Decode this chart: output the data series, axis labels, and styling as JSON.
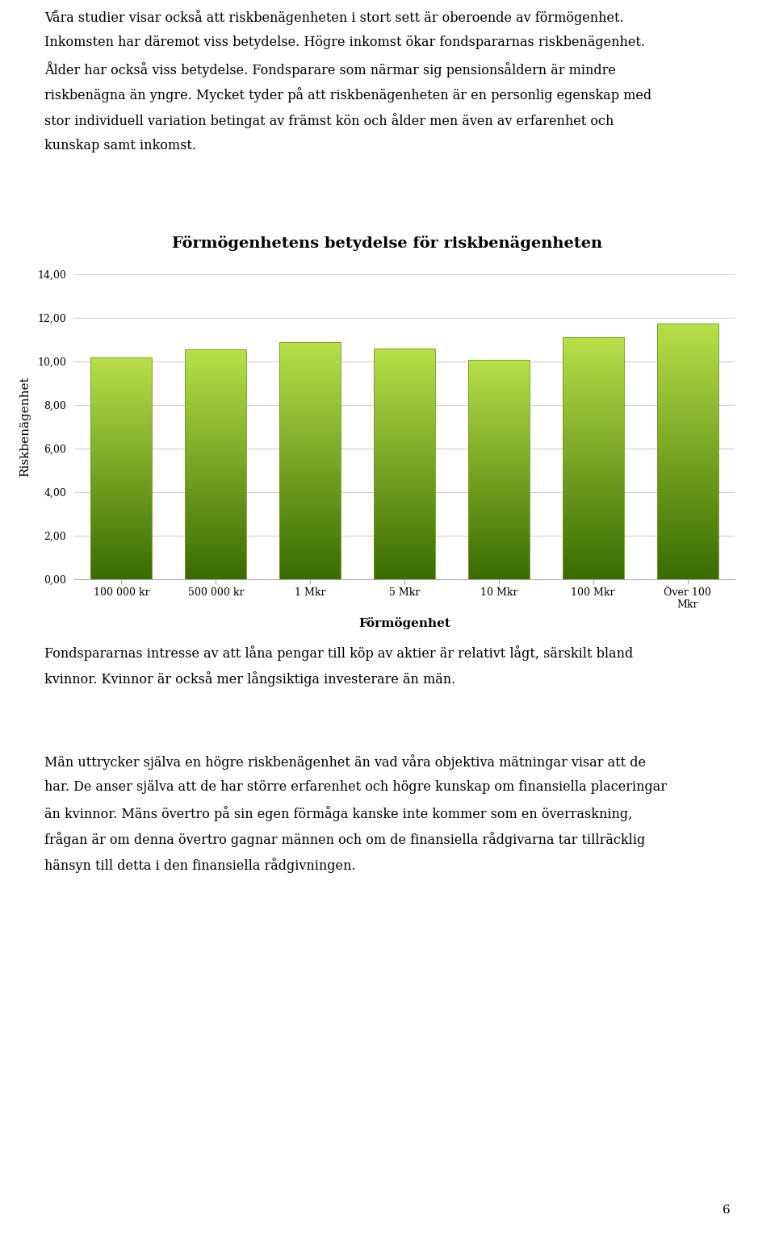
{
  "title": "Förmögenhetens betydelse för riskbenägenheten",
  "categories": [
    "100 000 kr",
    "500 000 kr",
    "1 Mkr",
    "5 Mkr",
    "10 Mkr",
    "100 Mkr",
    "Över 100\nMkr"
  ],
  "values": [
    10.18,
    10.55,
    10.88,
    10.6,
    10.08,
    11.1,
    11.75
  ],
  "xlabel": "Förmögenhet",
  "ylabel": "Riskbenägenhet",
  "ylim": [
    0,
    14
  ],
  "yticks": [
    0.0,
    2.0,
    4.0,
    6.0,
    8.0,
    10.0,
    12.0,
    14.0
  ],
  "ytick_labels": [
    "0,00",
    "2,00",
    "4,00",
    "6,00",
    "8,00",
    "10,00",
    "12,00",
    "14,00"
  ],
  "bar_color_top": "#b8e04a",
  "bar_color_bottom": "#3a6b00",
  "grid_color": "#d0d0d0",
  "background_color": "#ffffff",
  "plot_bg_color": "#ffffff",
  "title_fontsize": 14,
  "axis_label_fontsize": 10,
  "tick_fontsize": 9,
  "para1_lines": [
    "Våra studier visar också att riskbenägenheten i stort sett är oberoende av förmögenhet.",
    "Inkomsten har däremot viss betydelse. Högre inkomst ökar fondspararnas riskbenägenhet.",
    "Ålder har också viss betydelse. Fondsparare som närmar sig pensionsåldern är mindre",
    "riskbenägna än yngre. Mycket tyder på att riskbenägenheten är en personlig egenskap med",
    "stor individuell variation betingat av främst kön och ålder men även av erfarenhet och",
    "kunskap samt inkomst."
  ],
  "para2_lines": [
    "Fondspararnas intresse av att låna pengar till köp av aktier är relativt lågt, särskilt bland",
    "kvinnor. Kvinnor är också mer långsiktiga investerare än män."
  ],
  "para3_lines": [
    "Män uttrycker själva en högre riskbenägenhet än vad våra objektiva mätningar visar att de",
    "har. De anser själva att de har större erfarenhet och högre kunskap om finansiella placeringar",
    "än kvinnor. Mäns övertro på sin egen förmåga kanske inte kommer som en överraskning,",
    "frågan är om denna övertro gagnar männen och om de finansiella rådgivarna tar tillräcklig",
    "hänsyn till detta i den finansiella rådgivningen."
  ],
  "page_number": "6"
}
